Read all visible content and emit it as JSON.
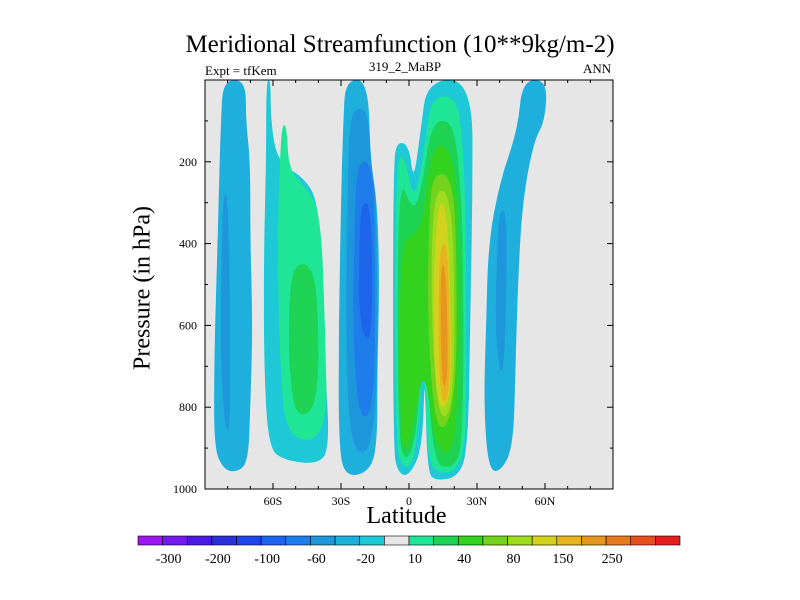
{
  "chart_data": {
    "type": "heatmap",
    "title": "Meridional Streamfunction (10**9kg/m-2)",
    "subtitle_left": "Expt = tfKem",
    "subtitle_center": "319_2_MaBP",
    "subtitle_right": "ANN",
    "xlabel": "Latitude",
    "ylabel": "Pressure (in hPa)",
    "xlim": [
      -90,
      90
    ],
    "ylim": [
      1000,
      0
    ],
    "x_ticks": [
      {
        "value": -60,
        "label": "60S"
      },
      {
        "value": -30,
        "label": "30S"
      },
      {
        "value": 0,
        "label": "0"
      },
      {
        "value": 30,
        "label": "30N"
      },
      {
        "value": 60,
        "label": "60N"
      }
    ],
    "y_ticks": [
      200,
      400,
      600,
      800,
      1000
    ],
    "background": "#e6e6e6",
    "colorbar": {
      "labels": [
        "-300",
        "-200",
        "-100",
        "-60",
        "-20",
        "10",
        "40",
        "80",
        "150",
        "250"
      ],
      "colors": [
        "#9b19f0",
        "#7319ea",
        "#4b19e6",
        "#2d32d7",
        "#1e46e6",
        "#1e64eb",
        "#1e7deb",
        "#1e96dc",
        "#1eafdc",
        "#1ec8d7",
        "#e6e6e6",
        "#1ee696",
        "#1ed254",
        "#32d21e",
        "#73d21e",
        "#a0dc1e",
        "#d2d21e",
        "#e6b41e",
        "#e6961e",
        "#e6781e",
        "#e6501e",
        "#e61e1e"
      ]
    },
    "cells": [
      {
        "name": "neg-cell-polar-south",
        "color": "#1eafdc",
        "points": [
          [
            -82,
            0
          ],
          [
            -72,
            0
          ],
          [
            -72,
            100
          ],
          [
            -70,
            200
          ],
          [
            -70,
            400
          ],
          [
            -69,
            600
          ],
          [
            -70,
            800
          ],
          [
            -71,
            940
          ],
          [
            -77,
            960
          ],
          [
            -82,
            950
          ],
          [
            -86,
            900
          ],
          [
            -86,
            700
          ],
          [
            -85,
            500
          ],
          [
            -84,
            300
          ],
          [
            -83,
            100
          ]
        ]
      },
      {
        "name": "neg-cell-polar-south-core",
        "color": "#1e96dc",
        "points": [
          [
            -82,
            280
          ],
          [
            -80,
            280
          ],
          [
            -79,
            500
          ],
          [
            -79,
            700
          ],
          [
            -79,
            850
          ],
          [
            -81,
            860
          ],
          [
            -83,
            700
          ],
          [
            -83,
            500
          ]
        ]
      },
      {
        "name": "pos-cell-ferrel-south",
        "color": "#1ec8d7",
        "points": [
          [
            -63,
            0
          ],
          [
            -61,
            0
          ],
          [
            -61,
            100
          ],
          [
            -58,
            200
          ],
          [
            -46,
            240
          ],
          [
            -40,
            300
          ],
          [
            -38,
            500
          ],
          [
            -37,
            700
          ],
          [
            -35,
            900
          ],
          [
            -40,
            940
          ],
          [
            -55,
            930
          ],
          [
            -62,
            900
          ],
          [
            -64,
            700
          ],
          [
            -64,
            400
          ],
          [
            -63,
            200
          ]
        ]
      },
      {
        "name": "pos-cell-ferrel-south-core",
        "color": "#1ee696",
        "points": [
          [
            -56,
            110
          ],
          [
            -54,
            110
          ],
          [
            -53,
            220
          ],
          [
            -46,
            260
          ],
          [
            -39,
            320
          ],
          [
            -37,
            600
          ],
          [
            -36,
            880
          ],
          [
            -54,
            880
          ],
          [
            -57,
            700
          ],
          [
            -58,
            400
          ],
          [
            -57,
            200
          ]
        ]
      },
      {
        "name": "pos-cell-ferrel-south-inner",
        "color": "#1ed254",
        "points": [
          [
            -51,
            450
          ],
          [
            -43,
            450
          ],
          [
            -40,
            550
          ],
          [
            -40,
            800
          ],
          [
            -50,
            830
          ],
          [
            -53,
            700
          ],
          [
            -53,
            550
          ]
        ]
      },
      {
        "name": "neg-cell-hadley-south",
        "color": "#1eafdc",
        "points": [
          [
            -28,
            0
          ],
          [
            -18,
            0
          ],
          [
            -17,
            200
          ],
          [
            -14,
            300
          ],
          [
            -13,
            500
          ],
          [
            -14,
            700
          ],
          [
            -14,
            900
          ],
          [
            -18,
            960
          ],
          [
            -28,
            970
          ],
          [
            -31,
            900
          ],
          [
            -31,
            600
          ],
          [
            -30,
            300
          ],
          [
            -29,
            100
          ]
        ]
      },
      {
        "name": "neg-cell-hadley-south-2",
        "color": "#1e96dc",
        "points": [
          [
            -26,
            70
          ],
          [
            -18,
            70
          ],
          [
            -17,
            200
          ],
          [
            -14,
            300
          ],
          [
            -14,
            900
          ],
          [
            -26,
            920
          ],
          [
            -28,
            600
          ],
          [
            -27,
            250
          ]
        ]
      },
      {
        "name": "neg-cell-hadley-south-3",
        "color": "#1e7deb",
        "points": [
          [
            -23,
            200
          ],
          [
            -16,
            200
          ],
          [
            -15,
            400
          ],
          [
            -15,
            800
          ],
          [
            -22,
            840
          ],
          [
            -25,
            600
          ],
          [
            -24,
            350
          ]
        ]
      },
      {
        "name": "neg-cell-hadley-south-4",
        "color": "#1e64eb",
        "points": [
          [
            -21,
            300
          ],
          [
            -17,
            300
          ],
          [
            -16,
            500
          ],
          [
            -17,
            650
          ],
          [
            -22,
            600
          ],
          [
            -22,
            400
          ]
        ]
      },
      {
        "name": "pos-cell-hadley-north",
        "color": "#1ec8d7",
        "points": [
          [
            8,
            0
          ],
          [
            28,
            0
          ],
          [
            28,
            300
          ],
          [
            27,
            600
          ],
          [
            26,
            900
          ],
          [
            22,
            970
          ],
          [
            12,
            980
          ],
          [
            8,
            960
          ],
          [
            7,
            700
          ],
          [
            6,
            900
          ],
          [
            0,
            970
          ],
          [
            -5,
            960
          ],
          [
            -7,
            900
          ],
          [
            -7,
            200
          ],
          [
            -5,
            150
          ],
          [
            0,
            160
          ],
          [
            2,
            250
          ],
          [
            5,
            130
          ]
        ]
      },
      {
        "name": "pos-cell-hadley-north-2",
        "color": "#1ee696",
        "points": [
          [
            10,
            40
          ],
          [
            20,
            40
          ],
          [
            23,
            100
          ],
          [
            25,
            300
          ],
          [
            25,
            700
          ],
          [
            25,
            900
          ],
          [
            20,
            960
          ],
          [
            12,
            960
          ],
          [
            8,
            920
          ],
          [
            6,
            600
          ],
          [
            5,
            800
          ],
          [
            2,
            940
          ],
          [
            -3,
            950
          ],
          [
            -6,
            880
          ],
          [
            -6,
            200
          ],
          [
            -2,
            180
          ],
          [
            2,
            300
          ],
          [
            6,
            200
          ],
          [
            7,
            150
          ]
        ]
      },
      {
        "name": "pos-cell-hadley-north-3",
        "color": "#1ed254",
        "points": [
          [
            10,
            100
          ],
          [
            19,
            100
          ],
          [
            22,
            200
          ],
          [
            24,
            400
          ],
          [
            24,
            900
          ],
          [
            19,
            950
          ],
          [
            11,
            940
          ],
          [
            8,
            700
          ],
          [
            6,
            600
          ],
          [
            4,
            850
          ],
          [
            -1,
            940
          ],
          [
            -5,
            880
          ],
          [
            -5,
            220
          ],
          [
            2,
            330
          ],
          [
            6,
            250
          ]
        ]
      },
      {
        "name": "pos-cell-hadley-north-4",
        "color": "#32d21e",
        "points": [
          [
            10,
            160
          ],
          [
            18,
            160
          ],
          [
            22,
            300
          ],
          [
            22,
            900
          ],
          [
            12,
            920
          ],
          [
            7,
            700
          ],
          [
            3,
            800
          ],
          [
            -1,
            920
          ],
          [
            -4,
            870
          ],
          [
            -4,
            400
          ],
          [
            2,
            380
          ],
          [
            6,
            350
          ]
        ]
      },
      {
        "name": "pos-cell-hadley-north-5",
        "color": "#73d21e",
        "points": [
          [
            11,
            230
          ],
          [
            18,
            230
          ],
          [
            21,
            350
          ],
          [
            21,
            800
          ],
          [
            12,
            880
          ],
          [
            8,
            600
          ],
          [
            9,
            300
          ]
        ]
      },
      {
        "name": "pos-cell-hadley-north-6",
        "color": "#a0dc1e",
        "points": [
          [
            12,
            270
          ],
          [
            17,
            270
          ],
          [
            20,
            400
          ],
          [
            20,
            800
          ],
          [
            13,
            840
          ],
          [
            10,
            600
          ],
          [
            10,
            380
          ]
        ]
      },
      {
        "name": "pos-cell-hadley-north-7",
        "color": "#d2d21e",
        "points": [
          [
            13,
            300
          ],
          [
            16,
            300
          ],
          [
            18,
            450
          ],
          [
            19,
            760
          ],
          [
            14,
            820
          ],
          [
            11,
            700
          ],
          [
            11,
            450
          ]
        ]
      },
      {
        "name": "pos-cell-hadley-north-8",
        "color": "#e6b41e",
        "points": [
          [
            14,
            400
          ],
          [
            17,
            400
          ],
          [
            18,
            600
          ],
          [
            18,
            760
          ],
          [
            15,
            800
          ],
          [
            13,
            700
          ],
          [
            13,
            500
          ]
        ]
      },
      {
        "name": "pos-cell-hadley-north-9",
        "color": "#e6961e",
        "points": [
          [
            14,
            450
          ],
          [
            16,
            450
          ],
          [
            17,
            600
          ],
          [
            17,
            730
          ],
          [
            15,
            760
          ],
          [
            14,
            650
          ]
        ]
      },
      {
        "name": "neg-cell-ferrel-north",
        "color": "#1eafdc",
        "points": [
          [
            50,
            0
          ],
          [
            61,
            0
          ],
          [
            60,
            100
          ],
          [
            55,
            150
          ],
          [
            50,
            300
          ],
          [
            48,
            500
          ],
          [
            47,
            700
          ],
          [
            46,
            900
          ],
          [
            40,
            960
          ],
          [
            35,
            950
          ],
          [
            33,
            800
          ],
          [
            34,
            600
          ],
          [
            35,
            400
          ],
          [
            40,
            250
          ],
          [
            48,
            120
          ]
        ]
      },
      {
        "name": "neg-cell-ferrel-north-core",
        "color": "#1e96dc",
        "points": [
          [
            40,
            320
          ],
          [
            43,
            320
          ],
          [
            43,
            500
          ],
          [
            42,
            700
          ],
          [
            40,
            720
          ],
          [
            38,
            600
          ],
          [
            39,
            400
          ]
        ]
      }
    ]
  }
}
